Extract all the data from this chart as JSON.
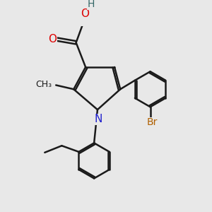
{
  "bg_color": "#e8e8e8",
  "bond_color": "#1a1a1a",
  "bond_width": 1.8,
  "dbo": 0.06,
  "figsize": [
    3.0,
    3.0
  ],
  "dpi": 100,
  "atom_colors": {
    "N": "#2020cc",
    "O": "#dd0000",
    "Br": "#b06000",
    "H": "#336666",
    "C": "#1a1a1a"
  }
}
